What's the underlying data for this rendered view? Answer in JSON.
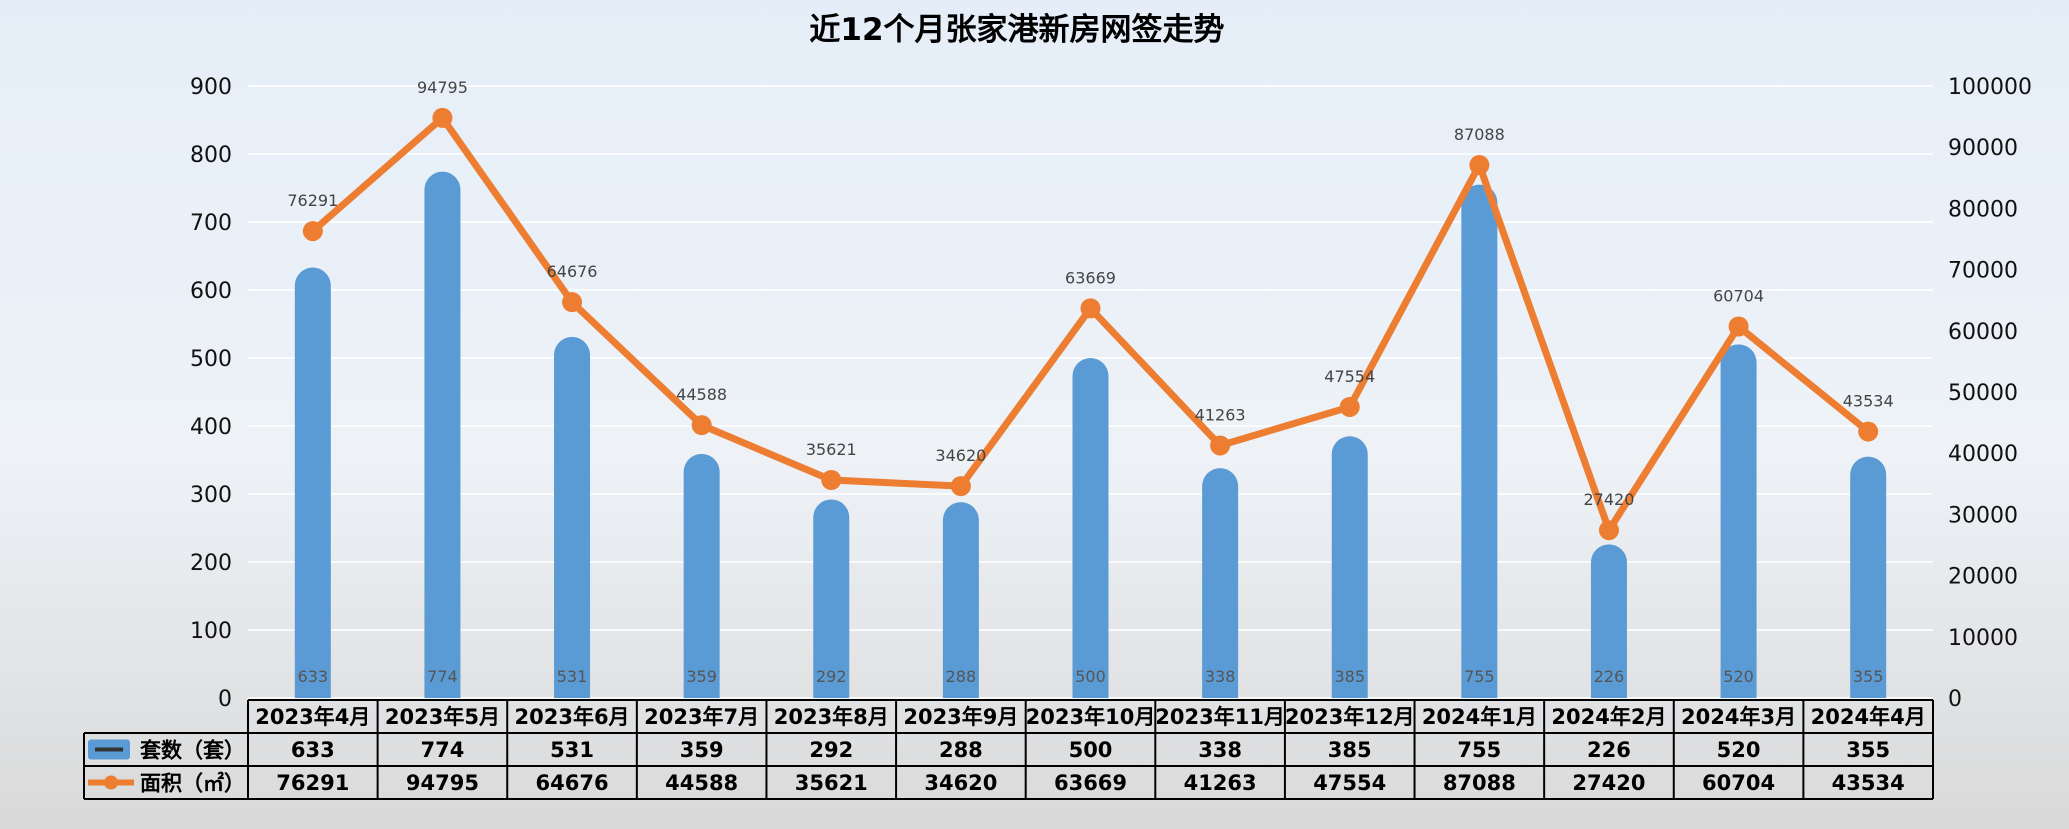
{
  "chart_data": {
    "type": "bar",
    "title": "近12个月张家港新房网签走势",
    "categories": [
      "2023年4月",
      "2023年5月",
      "2023年6月",
      "2023年7月",
      "2023年8月",
      "2023年9月",
      "2023年10月",
      "2023年11月",
      "2023年12月",
      "2024年1月",
      "2024年2月",
      "2024年3月",
      "2024年4月"
    ],
    "series": [
      {
        "name": "套数（套）",
        "type": "bar",
        "axis": "left",
        "color": "#5b9bd5",
        "values": [
          633,
          774,
          531,
          359,
          292,
          288,
          500,
          338,
          385,
          755,
          226,
          520,
          355
        ]
      },
      {
        "name": "面积（㎡）",
        "type": "line",
        "axis": "right",
        "color": "#ed7d31",
        "values": [
          76291,
          94795,
          64676,
          44588,
          35621,
          34620,
          63669,
          41263,
          47554,
          87088,
          27420,
          60704,
          43534
        ]
      }
    ],
    "y_left": {
      "min": 0,
      "max": 900,
      "step": 100
    },
    "y_right": {
      "min": 0,
      "max": 100000,
      "step": 10000
    },
    "grid": true,
    "legend": "data table below chart"
  }
}
